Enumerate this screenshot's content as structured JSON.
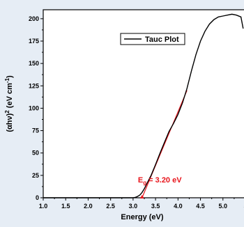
{
  "chart_data": {
    "type": "line",
    "title": "",
    "xlabel": "Energy (eV)",
    "ylabel_parts": {
      "base": "(αhν)",
      "sup1": "2",
      "unit": " (eV cm",
      "sup2": "-1",
      "close": ")"
    },
    "xlim": [
      1.0,
      5.5
    ],
    "ylim": [
      0,
      210
    ],
    "xticks": [
      "1.0",
      "1.5",
      "2.0",
      "2.5",
      "3.0",
      "3.5",
      "4.0",
      "4.5",
      "5.0",
      "5"
    ],
    "yticks": [
      "0",
      "25",
      "50",
      "75",
      "100",
      "125",
      "150",
      "175",
      "200"
    ],
    "grid": false,
    "legend": {
      "label": "Tauc Plot",
      "position": "top-center"
    },
    "series": [
      {
        "name": "Tauc Plot",
        "color": "#000000",
        "x": [
          3.0,
          3.05,
          3.1,
          3.15,
          3.2,
          3.25,
          3.3,
          3.4,
          3.5,
          3.6,
          3.7,
          3.8,
          3.9,
          4.0,
          4.1,
          4.2,
          4.3,
          4.4,
          4.5,
          4.6,
          4.7,
          4.8,
          4.9,
          5.0,
          5.1,
          5.2,
          5.3,
          5.4,
          5.45
        ],
        "y": [
          0,
          0.5,
          1.5,
          3,
          6,
          10,
          15,
          25,
          37,
          50,
          62,
          74,
          83,
          93,
          106,
          122,
          142,
          160,
          175,
          186,
          194,
          199,
          202,
          203,
          204,
          205,
          204,
          202,
          189
        ]
      }
    ],
    "fit_line": {
      "color": "#e8141b",
      "x": [
        3.2,
        4.2
      ],
      "y": [
        0,
        120
      ]
    },
    "marker": {
      "x": 3.2,
      "y": 0,
      "color": "#e8141b"
    },
    "annotation": {
      "base": "E",
      "sub": "g",
      "rest": " = 3.20 eV",
      "x": 4.35,
      "y": 17,
      "color": "#e8141b"
    }
  }
}
